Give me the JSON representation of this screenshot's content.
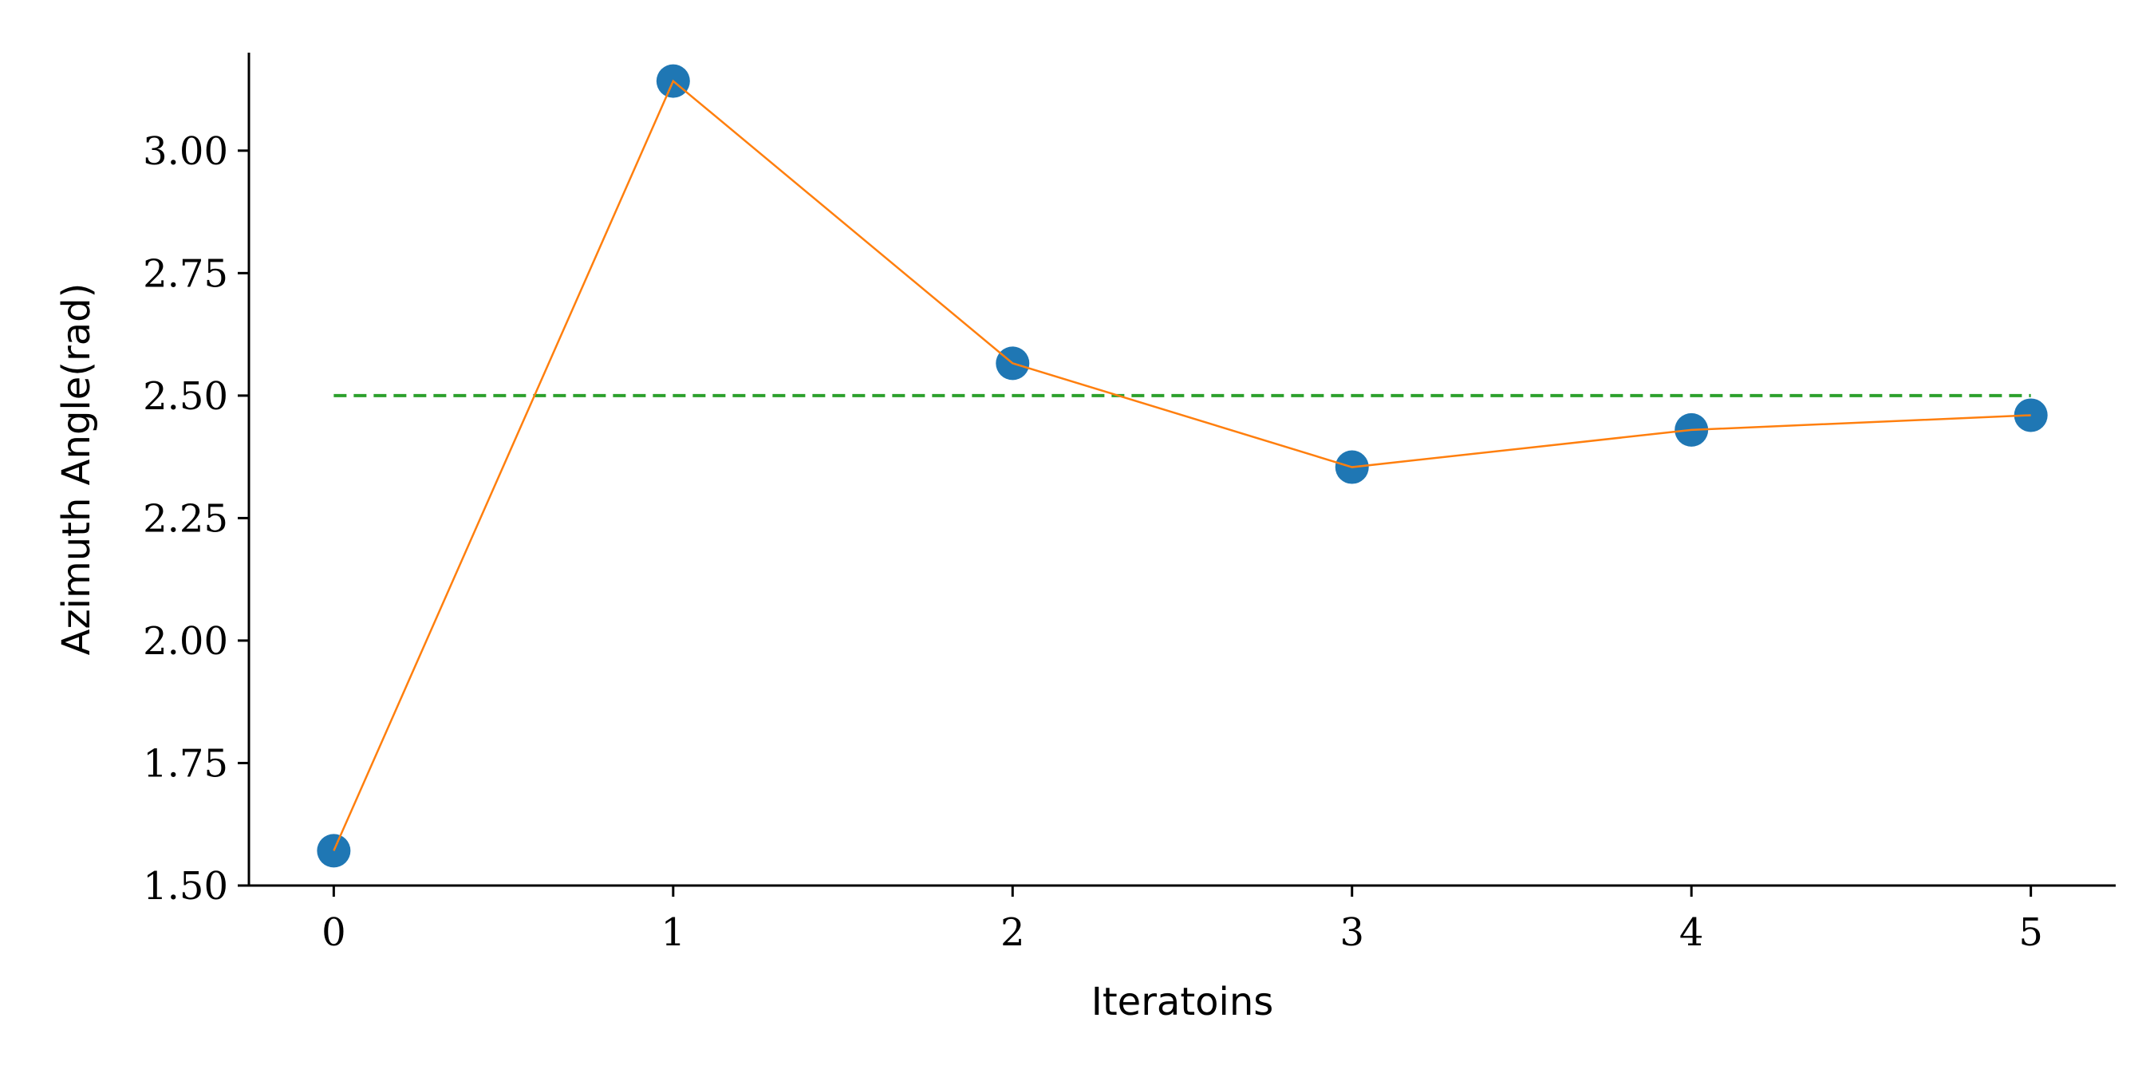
{
  "chart_data": {
    "type": "line",
    "xlabel": "Iteratoins",
    "ylabel": "Azimuth Angle(rad)",
    "xlim": [
      -0.25,
      5.25
    ],
    "ylim": [
      1.5,
      3.2
    ],
    "x_ticks": [
      0,
      1,
      2,
      3,
      4,
      5
    ],
    "x_tick_labels": [
      "0",
      "1",
      "2",
      "3",
      "4",
      "5"
    ],
    "y_ticks": [
      1.5,
      1.75,
      2.0,
      2.25,
      2.5,
      2.75,
      3.0
    ],
    "y_tick_labels": [
      "1.50",
      "1.75",
      "2.00",
      "2.25",
      "2.50",
      "2.75",
      "3.00"
    ],
    "grid": false,
    "legend": "none",
    "series": [
      {
        "style": "line+scatter",
        "marker_color": "#1f77b4",
        "line_color": "#ff7f0e",
        "x": [
          0,
          1,
          2,
          3,
          4,
          5
        ],
        "y": [
          1.571,
          3.142,
          2.566,
          2.354,
          2.43,
          2.46
        ]
      },
      {
        "style": "dashed-line",
        "line_color": "#2ca02c",
        "x": [
          0,
          5
        ],
        "y": [
          2.5,
          2.5
        ]
      }
    ]
  }
}
